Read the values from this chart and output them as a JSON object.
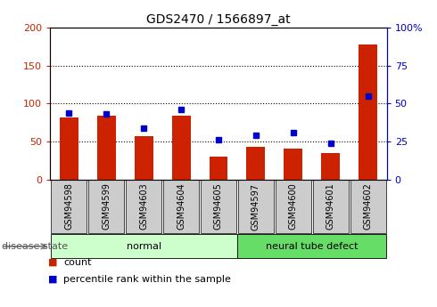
{
  "title": "GDS2470 / 1566897_at",
  "samples": [
    "GSM94598",
    "GSM94599",
    "GSM94603",
    "GSM94604",
    "GSM94605",
    "GSM94597",
    "GSM94600",
    "GSM94601",
    "GSM94602"
  ],
  "counts": [
    82,
    84,
    57,
    84,
    30,
    43,
    41,
    35,
    178
  ],
  "percentiles": [
    44,
    43,
    34,
    46,
    26,
    29,
    31,
    24,
    55
  ],
  "groups": [
    {
      "label": "normal",
      "start": 0,
      "end": 5,
      "color": "#ccffcc"
    },
    {
      "label": "neural tube defect",
      "start": 5,
      "end": 9,
      "color": "#66dd66"
    }
  ],
  "left_ylim": [
    0,
    200
  ],
  "right_ylim": [
    0,
    100
  ],
  "left_yticks": [
    0,
    50,
    100,
    150,
    200
  ],
  "right_yticks": [
    0,
    25,
    50,
    75,
    100
  ],
  "right_yticklabels": [
    "0",
    "25",
    "50",
    "75",
    "100%"
  ],
  "bar_color": "#cc2200",
  "dot_color": "#0000cc",
  "bg_color": "#ffffff",
  "tick_bg_color": "#cccccc",
  "dotted_gridlines": [
    50,
    100,
    150
  ],
  "legend_count": "count",
  "legend_percentile": "percentile rank within the sample",
  "disease_state_label": "disease state"
}
